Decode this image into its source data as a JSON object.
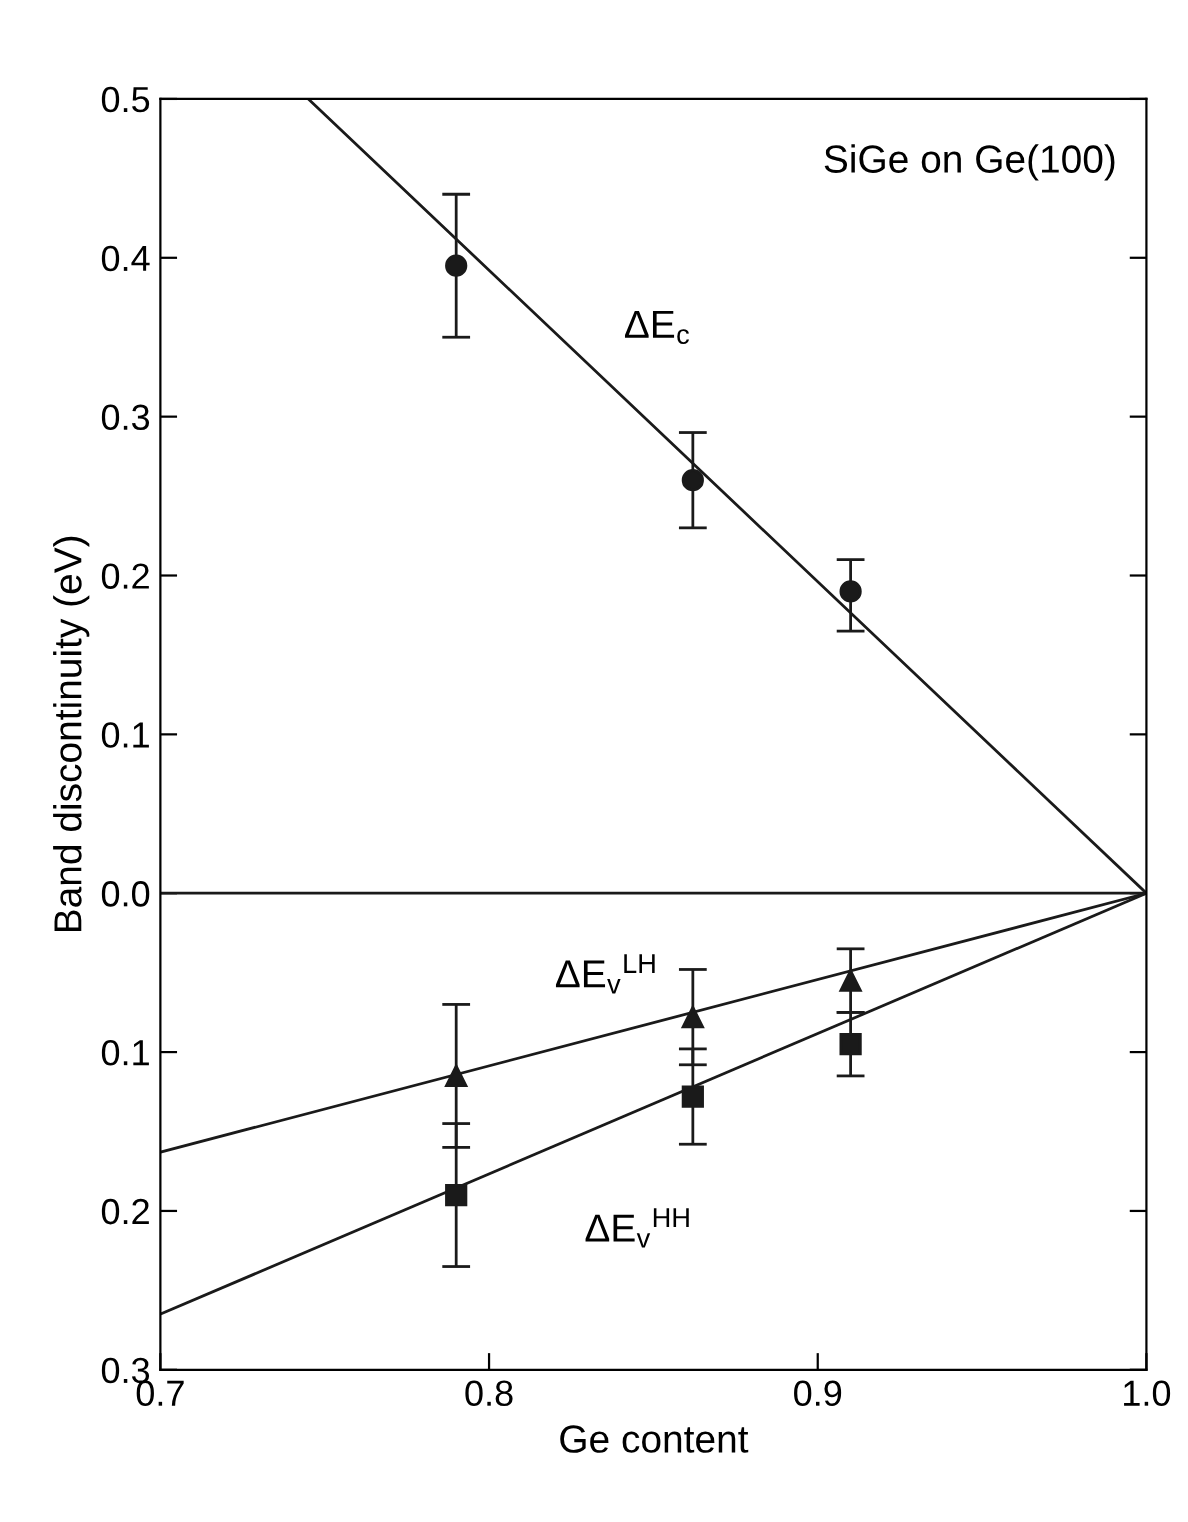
{
  "chart_data": {
    "type": "scatter",
    "xlabel": "Ge content",
    "ylabel": "Band discontinuity (eV)",
    "xlim": [
      0.7,
      1.0
    ],
    "ylim": [
      -0.3,
      0.5
    ],
    "xticks": [
      0.7,
      0.8,
      0.9,
      {
        "value": 1.0,
        "label": "1.0"
      }
    ],
    "yticks": [
      {
        "value": -0.3,
        "label": "0.3"
      },
      {
        "value": -0.2,
        "label": "0.2"
      },
      {
        "value": -0.1,
        "label": "0.1"
      },
      {
        "value": 0.0,
        "label": "0.0"
      },
      0.1,
      0.2,
      0.3,
      0.4,
      0.5
    ],
    "grid": false,
    "legend": false,
    "series": [
      {
        "marker": "circle",
        "color": "#1a1a1a",
        "x": [
          0.79,
          0.862,
          0.91
        ],
        "values": [
          0.395,
          0.26,
          0.19
        ],
        "errors": [
          [
            0.35,
            0.44
          ],
          [
            0.23,
            0.29
          ],
          [
            0.165,
            0.21
          ]
        ]
      },
      {
        "marker": "triangle",
        "color": "#1a1a1a",
        "x": [
          0.79,
          0.862,
          0.91
        ],
        "values": [
          -0.115,
          -0.078,
          -0.055
        ],
        "errors": [
          0.045,
          0.03,
          0.02
        ]
      },
      {
        "marker": "square",
        "color": "#1a1a1a",
        "x": [
          0.79,
          0.862,
          0.91
        ],
        "values": [
          -0.19,
          -0.128,
          -0.095
        ],
        "errors": [
          0.045,
          0.03,
          0.02
        ]
      },
      {
        "type": "line",
        "marker": "none",
        "color": "#1a1a1a",
        "x": [
          0.745,
          1.0
        ],
        "values": [
          0.5,
          0.0
        ]
      },
      {
        "type": "line",
        "marker": "none",
        "color": "#1a1a1a",
        "x": [
          0.7,
          1.0
        ],
        "values": [
          -0.163,
          0.0
        ]
      },
      {
        "type": "line",
        "marker": "none",
        "color": "#1a1a1a",
        "x": [
          0.7,
          1.0
        ],
        "values": [
          -0.265,
          0.0
        ]
      }
    ],
    "ref_lines": [
      {
        "axis": "y",
        "value": 0.0,
        "color": "#1a1a1a"
      }
    ],
    "annotations": [
      "SiGe on Ge(100)",
      "ΔE$_{c}$",
      "ΔE$_{v}$$^{LH}$",
      "ΔE$_{v}$$^{HH}$"
    ]
  }
}
